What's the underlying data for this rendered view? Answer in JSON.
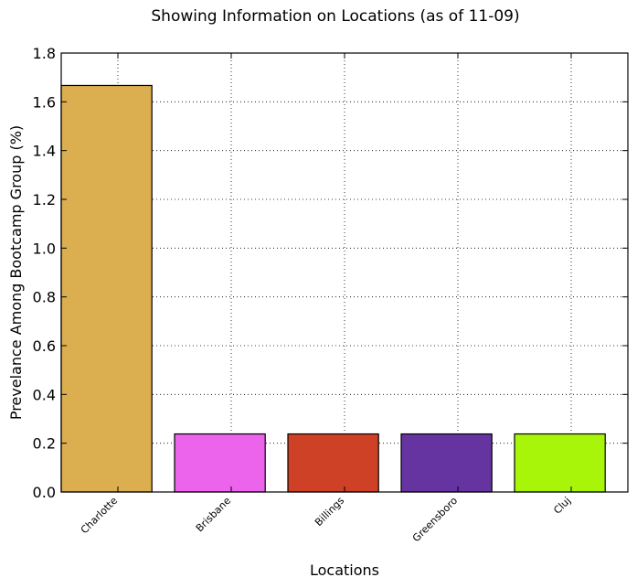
{
  "chart_data": {
    "type": "bar",
    "title": "Showing Information on Locations (as of 11-09)",
    "xlabel": "Locations",
    "ylabel": "Prevelance Among Bootcamp Group (%)",
    "ylim": [
      0,
      1.8
    ],
    "yticks": [
      "0.0",
      "0.2",
      "0.4",
      "0.6",
      "0.8",
      "1.0",
      "1.2",
      "1.4",
      "1.6",
      "1.8"
    ],
    "grid": true,
    "categories": [
      "Charlotte",
      "Brisbane",
      "Billings",
      "Greensboro",
      "Cluj"
    ],
    "values": [
      1.667,
      0.238,
      0.238,
      0.238,
      0.238
    ],
    "colors": [
      "#dbaf50",
      "#ec63ec",
      "#cf4126",
      "#6534a0",
      "#a9f50a"
    ]
  }
}
